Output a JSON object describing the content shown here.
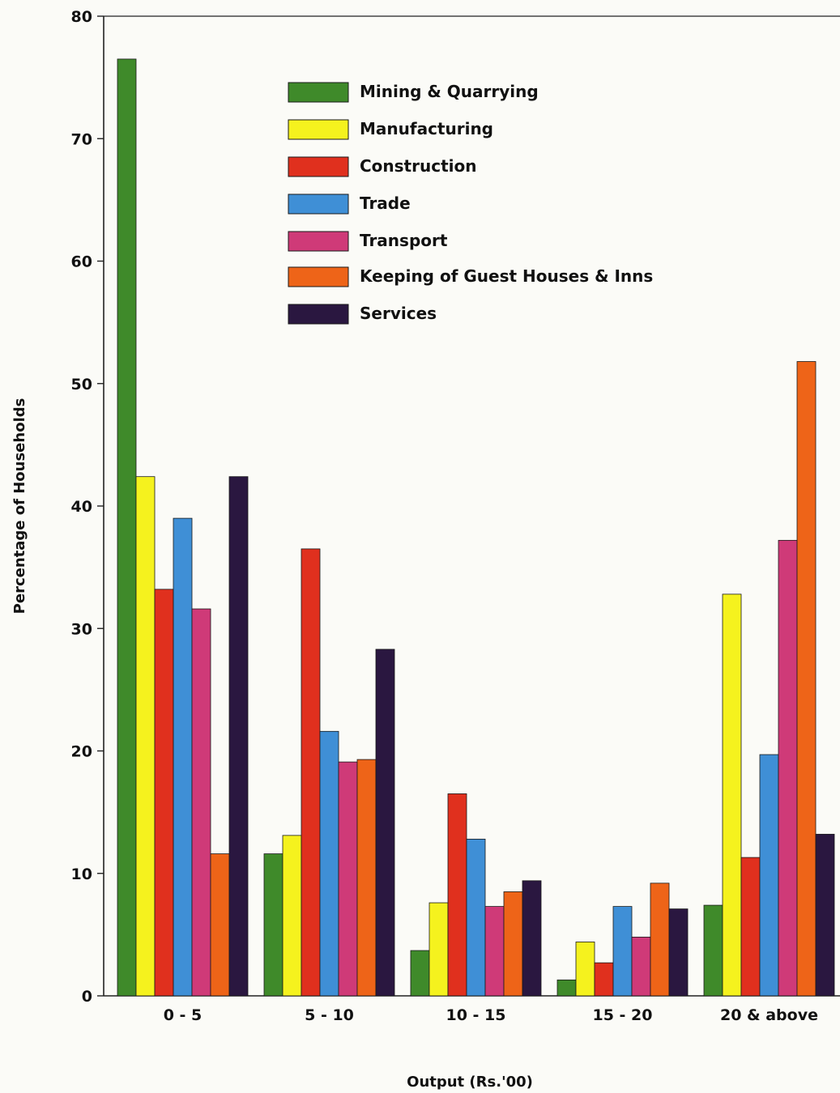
{
  "chart_data": {
    "type": "bar",
    "xlabel": "Output (Rs.'00)",
    "ylabel": "Percentage of Households",
    "ylim": [
      0,
      80
    ],
    "yticks": [
      0,
      10,
      20,
      30,
      40,
      50,
      60,
      70,
      80
    ],
    "categories": [
      "0 - 5",
      "5 - 10",
      "10 - 15",
      "15 - 20",
      "20 & above"
    ],
    "legend_position": "top-center",
    "series": [
      {
        "name": "Mining & Quarrying",
        "color": "#3f8a2a",
        "values": [
          76.5,
          11.6,
          3.7,
          1.3,
          7.4
        ]
      },
      {
        "name": "Manufacturing",
        "color": "#f5f21e",
        "values": [
          42.4,
          13.1,
          7.6,
          4.4,
          32.8
        ]
      },
      {
        "name": "Construction",
        "color": "#e0301e",
        "values": [
          33.2,
          36.5,
          16.5,
          2.7,
          11.3
        ]
      },
      {
        "name": "Trade",
        "color": "#3f8fd6",
        "values": [
          39.0,
          21.6,
          12.8,
          7.3,
          19.7
        ]
      },
      {
        "name": "Transport",
        "color": "#cf3a78",
        "values": [
          31.6,
          19.1,
          7.3,
          4.8,
          37.2
        ]
      },
      {
        "name": "Keeping of Guest Houses & Inns",
        "color": "#ee6418",
        "values": [
          11.6,
          19.3,
          8.5,
          9.2,
          51.8
        ]
      },
      {
        "name": "Services",
        "color": "#2a1740",
        "values": [
          42.4,
          28.3,
          9.4,
          7.1,
          13.2
        ]
      }
    ]
  }
}
